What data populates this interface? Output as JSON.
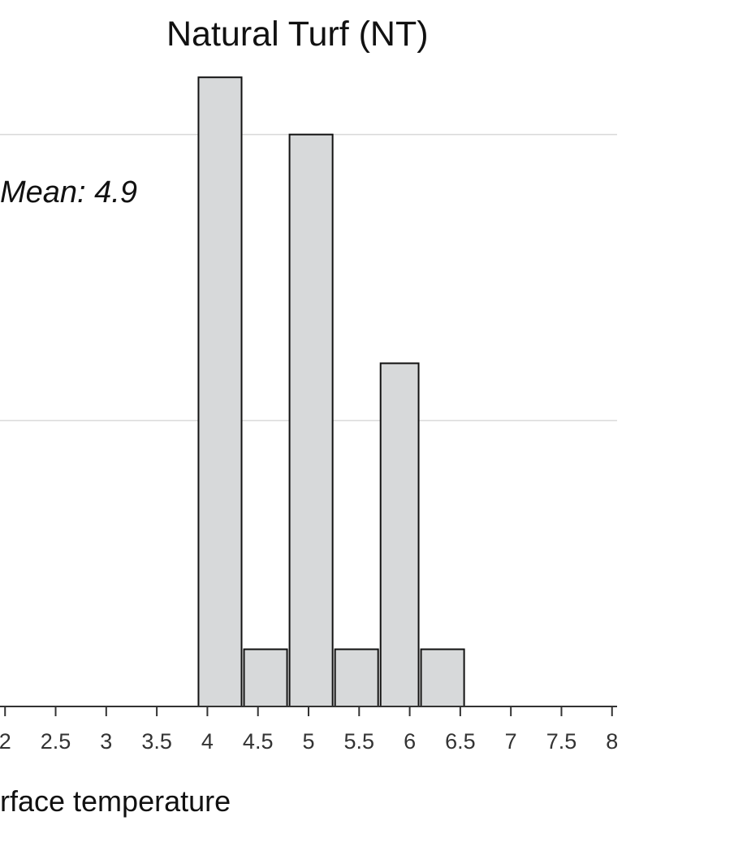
{
  "chart_data": {
    "type": "bar",
    "title": "Natural Turf (NT)",
    "annotation": "Mean: 4.9",
    "xlabel": "rface temperature",
    "ylabel": "",
    "x_ticks": [
      "2",
      "2.5",
      "3",
      "3.5",
      "4",
      "4.5",
      "5",
      "5.5",
      "6",
      "6.5",
      "7",
      "7.5",
      "8"
    ],
    "x_tick_values": [
      2,
      2.5,
      3,
      3.5,
      4,
      4.5,
      5,
      5.5,
      6,
      6.5,
      7,
      7.5,
      8
    ],
    "xlim": [
      1.95,
      8.05
    ],
    "bins": [
      {
        "start": 3.9,
        "end": 4.35,
        "count": 11
      },
      {
        "start": 4.35,
        "end": 4.8,
        "count": 1
      },
      {
        "start": 4.8,
        "end": 5.25,
        "count": 10
      },
      {
        "start": 5.25,
        "end": 5.7,
        "count": 1
      },
      {
        "start": 5.7,
        "end": 6.1,
        "count": 6
      },
      {
        "start": 6.1,
        "end": 6.55,
        "count": 1
      }
    ],
    "ylim": [
      0,
      11.5
    ],
    "gridlines_y": [
      5,
      10
    ],
    "grid": true,
    "colors": {
      "bar_fill": "#d7d9da",
      "bar_stroke": "#111111",
      "grid": "#d9d9d9",
      "axis": "#333333"
    }
  }
}
